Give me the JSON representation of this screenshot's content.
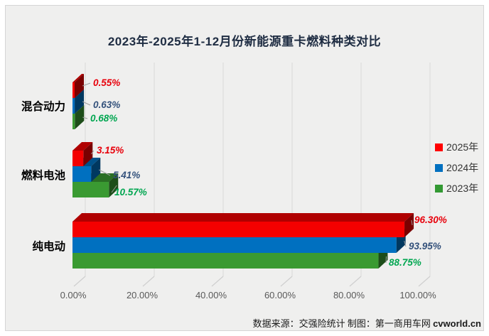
{
  "title": "2023年-2025年1-12月份新能源重卡燃料种类对比",
  "footer": {
    "source_text": "数据来源：交强险统计 制图：第一商用车网",
    "brand": "cvworld.cn"
  },
  "legend": [
    {
      "label": "2025年",
      "color": "#ff0000"
    },
    {
      "label": "2024年",
      "color": "#0070c0"
    },
    {
      "label": "2023年",
      "color": "#339933"
    }
  ],
  "chart_data": {
    "type": "bar",
    "orientation": "horizontal",
    "style": "3d",
    "title": "2023年-2025年1-12月份新能源重卡燃料种类对比",
    "categories": [
      "混合动力",
      "燃料电池",
      "纯电动"
    ],
    "series": [
      {
        "name": "2025年",
        "color": "#f40000",
        "label_color": "#e8000b",
        "values": [
          0.55,
          3.15,
          96.3
        ],
        "labels": [
          "0.55%",
          "3.15%",
          "96.30%"
        ]
      },
      {
        "name": "2024年",
        "color": "#0070c0",
        "label_color": "#33517b",
        "values": [
          0.63,
          5.41,
          93.95
        ],
        "labels": [
          "0.63%",
          "5.41%",
          "93.95%"
        ]
      },
      {
        "name": "2023年",
        "color": "#3a9a32",
        "label_color": "#00a650",
        "values": [
          0.68,
          10.57,
          88.75
        ],
        "labels": [
          "0.68%",
          "10.57%",
          "88.75%"
        ]
      }
    ],
    "x_ticks": [
      "0.00%",
      "20.00%",
      "40.00%",
      "60.00%",
      "80.00%",
      "100.00%"
    ],
    "xlim": [
      0,
      100
    ],
    "gridlines": true,
    "legend_position": "right",
    "source_note": "数据来源：交强险统计 制图：第一商用车网 cvworld.cn"
  }
}
